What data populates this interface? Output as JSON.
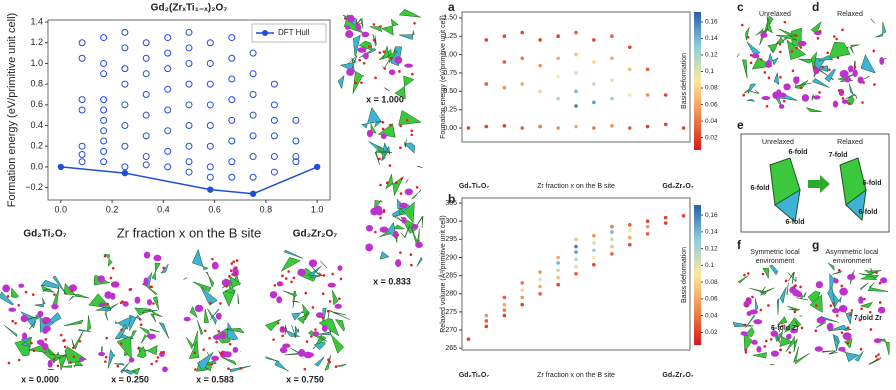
{
  "chart_data": [
    {
      "type": "scatter",
      "title": "Gd₂(ZrₓTi₁₋ₓ)₂O₇",
      "xlabel": "Zr fraction x on the B site",
      "ylabel": "Formation energy (eV/primitive unit cell)",
      "annotations": [
        "Gd₂Ti₂O₇",
        "Gd₂Zr₂O₇"
      ],
      "xlim": [
        -0.05,
        1.05
      ],
      "ylim": [
        -0.32,
        1.42
      ],
      "xticks": [
        {
          "value": 0,
          "label": "0.0"
        },
        {
          "value": 0.2,
          "label": "0.2"
        },
        {
          "value": 0.4,
          "label": "0.4"
        },
        {
          "value": 0.6,
          "label": "0.6"
        },
        {
          "value": 0.8,
          "label": "0.8"
        },
        {
          "value": 1,
          "label": "1.0"
        }
      ],
      "yticks": [
        {
          "value": -0.2,
          "label": "−0.2"
        },
        {
          "value": 0,
          "label": "0.0"
        },
        {
          "value": 0.2,
          "label": "0.2"
        },
        {
          "value": 0.4,
          "label": "0.4"
        },
        {
          "value": 0.6,
          "label": "0.6"
        },
        {
          "value": 0.8,
          "label": "0.8"
        },
        {
          "value": 1,
          "label": "1.0"
        },
        {
          "value": 1.2,
          "label": "1.2"
        },
        {
          "value": 1.4,
          "label": "1.4"
        }
      ],
      "legend": "upper right",
      "series": [
        {
          "color": "#1f4fd6",
          "mode": "open",
          "x": [
            0.083,
            0.083,
            0.083,
            0.083,
            0.083,
            0.083,
            0.083,
            0.167,
            0.167,
            0.167,
            0.167,
            0.167,
            0.167,
            0.167,
            0.167,
            0.167,
            0.167,
            0.25,
            0.25,
            0.25,
            0.25,
            0.25,
            0.25,
            0.25,
            0.25,
            0.333,
            0.333,
            0.333,
            0.333,
            0.333,
            0.333,
            0.333,
            0.333,
            0.417,
            0.417,
            0.417,
            0.417,
            0.417,
            0.417,
            0.417,
            0.417,
            0.5,
            0.5,
            0.5,
            0.5,
            0.5,
            0.5,
            0.5,
            0.5,
            0.5,
            0.583,
            0.583,
            0.583,
            0.583,
            0.583,
            0.583,
            0.583,
            0.583,
            0.667,
            0.667,
            0.667,
            0.667,
            0.667,
            0.667,
            0.667,
            0.667,
            0.75,
            0.75,
            0.75,
            0.75,
            0.75,
            0.75,
            0.75,
            0.833,
            0.833,
            0.833,
            0.833,
            0.833,
            0.833,
            0.917,
            0.917,
            0.917,
            0.917
          ],
          "y": [
            1.2,
            1.05,
            0.65,
            0.55,
            0.2,
            0.12,
            0.05,
            1.25,
            1.0,
            0.9,
            0.65,
            0.55,
            0.45,
            0.35,
            0.25,
            0.15,
            0.05,
            1.3,
            1.15,
            0.95,
            0.8,
            0.6,
            0.4,
            0.2,
            0.0,
            1.2,
            1.05,
            0.9,
            0.7,
            0.5,
            0.3,
            0.1,
            0.02,
            1.25,
            1.1,
            0.95,
            0.75,
            0.55,
            0.35,
            0.15,
            0.0,
            1.3,
            1.15,
            1.0,
            0.8,
            0.6,
            0.4,
            0.2,
            0.05,
            -0.05,
            1.2,
            1.0,
            0.8,
            0.6,
            0.4,
            0.2,
            0.0,
            -0.1,
            1.25,
            1.05,
            0.85,
            0.65,
            0.45,
            0.25,
            0.05,
            -0.1,
            1.1,
            0.9,
            0.7,
            0.5,
            0.3,
            0.1,
            -0.1,
            0.8,
            0.6,
            0.45,
            0.3,
            0.1,
            -0.05,
            0.45,
            0.25,
            0.1,
            0.05
          ]
        },
        {
          "name": "DFT Hull",
          "color": "#1f4fd6",
          "mode": "line",
          "x": [
            0,
            0.25,
            0.583,
            0.75,
            1.0
          ],
          "y": [
            0,
            -0.06,
            -0.22,
            -0.26,
            0
          ]
        }
      ]
    },
    {
      "type": "scatter",
      "ylabel": "Formation energy (eV/primitive unit cell)",
      "xlabel": "Zr fraction x on the B site",
      "annotations": [
        "Gd₂Ti₂O₇",
        "Gd₂Zr₂O₇"
      ],
      "xlim": [
        -0.03,
        1.03
      ],
      "ylim": [
        -0.19,
        1.58
      ],
      "yticks": [
        {
          "value": 0,
          "label": "0.00"
        },
        {
          "value": 0.25,
          "label": "0.25"
        },
        {
          "value": 0.5,
          "label": "0.50"
        },
        {
          "value": 0.75,
          "label": "0.75"
        },
        {
          "value": 1,
          "label": "1.00"
        },
        {
          "value": 1.25,
          "label": "1.25"
        },
        {
          "value": 1.5,
          "label": "1.50"
        }
      ],
      "colorbar": {
        "label": "Basis deformation",
        "lim": [
          0.005,
          0.172
        ],
        "ticks": [
          0.02,
          0.04,
          0.06,
          0.08,
          0.1,
          0.12,
          0.14,
          0.16
        ],
        "colors": [
          "#d7191c",
          "#f08a4b",
          "#fde79c",
          "#8fcfdc",
          "#2a5ea8"
        ]
      },
      "series": [
        {
          "x": [
            0,
            1,
            0.083,
            0.083,
            0.083,
            0.167,
            0.167,
            0.167,
            0.167,
            0.25,
            0.25,
            0.25,
            0.25,
            0.333,
            0.333,
            0.333,
            0.333,
            0.417,
            0.417,
            0.417,
            0.417,
            0.417,
            0.5,
            0.5,
            0.5,
            0.5,
            0.5,
            0.5,
            0.583,
            0.583,
            0.583,
            0.583,
            0.583,
            0.667,
            0.667,
            0.667,
            0.667,
            0.667,
            0.75,
            0.75,
            0.75,
            0.75,
            0.833,
            0.833,
            0.833,
            0.917,
            0.917
          ],
          "y": [
            0,
            0,
            1.2,
            0.6,
            0.02,
            1.25,
            0.9,
            0.55,
            0.03,
            1.3,
            0.95,
            0.6,
            0.0,
            1.2,
            0.85,
            0.5,
            0.02,
            1.25,
            0.95,
            0.7,
            0.4,
            0.0,
            1.3,
            1.0,
            0.75,
            0.5,
            0.3,
            0.02,
            1.2,
            0.9,
            0.6,
            0.35,
            0.0,
            1.25,
            0.95,
            0.65,
            0.4,
            0.03,
            1.1,
            0.8,
            0.45,
            0.0,
            0.8,
            0.45,
            0.02,
            0.45,
            0.05
          ],
          "c": [
            0.02,
            0.02,
            0.02,
            0.03,
            0.02,
            0.02,
            0.03,
            0.05,
            0.02,
            0.02,
            0.04,
            0.06,
            0.03,
            0.02,
            0.05,
            0.08,
            0.04,
            0.02,
            0.06,
            0.09,
            0.12,
            0.05,
            0.03,
            0.07,
            0.1,
            0.14,
            0.16,
            0.06,
            0.02,
            0.08,
            0.11,
            0.15,
            0.04,
            0.03,
            0.06,
            0.1,
            0.13,
            0.05,
            0.02,
            0.07,
            0.09,
            0.03,
            0.03,
            0.05,
            0.02,
            0.02,
            0.02
          ]
        }
      ]
    },
    {
      "type": "scatter",
      "ylabel": "Relaxed volume (Å³/primitive unit cell)",
      "xlabel": "Zr fraction x on the B site",
      "annotations": [
        "Gd₂Ti₂O₇",
        "Gd₂Zr₂O₇"
      ],
      "xlim": [
        -0.03,
        1.03
      ],
      "ylim": [
        264.5,
        306.4
      ],
      "yticks": [
        265,
        270,
        275,
        280,
        285,
        290,
        295,
        300,
        305
      ],
      "colorbar": {
        "label": "Basis deformation",
        "lim": [
          0.005,
          0.172
        ],
        "ticks": [
          0.02,
          0.04,
          0.06,
          0.08,
          0.1,
          0.12,
          0.14,
          0.16
        ],
        "colors": [
          "#d7191c",
          "#f08a4b",
          "#fde79c",
          "#8fcfdc",
          "#2a5ea8"
        ]
      },
      "series": [
        {
          "x": [
            0,
            1,
            0.083,
            0.083,
            0.083,
            0.167,
            0.167,
            0.167,
            0.167,
            0.25,
            0.25,
            0.25,
            0.25,
            0.333,
            0.333,
            0.333,
            0.333,
            0.417,
            0.417,
            0.417,
            0.417,
            0.417,
            0.5,
            0.5,
            0.5,
            0.5,
            0.5,
            0.5,
            0.583,
            0.583,
            0.583,
            0.583,
            0.583,
            0.667,
            0.667,
            0.667,
            0.667,
            0.667,
            0.75,
            0.75,
            0.75,
            0.75,
            0.833,
            0.833,
            0.833,
            0.917,
            0.917
          ],
          "y": [
            267.5,
            301.5,
            271,
            272.5,
            274,
            274,
            275.5,
            277,
            279,
            277,
            279,
            281,
            283,
            280,
            282,
            284,
            286,
            282.5,
            284.5,
            286.5,
            288.5,
            290,
            285.5,
            287.5,
            289.5,
            291.5,
            293,
            295,
            288,
            290,
            292,
            294,
            296,
            291,
            293,
            295,
            297,
            298.5,
            293.5,
            295.5,
            297.5,
            299,
            296.5,
            298.5,
            300,
            299.5,
            301
          ],
          "c": [
            0.02,
            0.02,
            0.02,
            0.03,
            0.05,
            0.02,
            0.04,
            0.06,
            0.03,
            0.02,
            0.05,
            0.08,
            0.04,
            0.03,
            0.06,
            0.1,
            0.05,
            0.02,
            0.07,
            0.11,
            0.14,
            0.06,
            0.03,
            0.08,
            0.12,
            0.15,
            0.16,
            0.07,
            0.02,
            0.09,
            0.13,
            0.1,
            0.05,
            0.03,
            0.07,
            0.11,
            0.14,
            0.04,
            0.02,
            0.06,
            0.09,
            0.03,
            0.03,
            0.05,
            0.02,
            0.02,
            0.02
          ]
        }
      ]
    }
  ],
  "figure": {
    "panel_labels": [
      "a",
      "b",
      "c",
      "d",
      "e",
      "f",
      "g"
    ],
    "structures": [
      "x = 1.000",
      "x = 0.833",
      "x = 0.000",
      "x = 0.250",
      "x = 0.583",
      "x = 0.750"
    ],
    "panel_c": "Unrelaxed",
    "panel_d": "Relaxed",
    "panel_e": {
      "left": "Unrelaxed",
      "right": "Relaxed",
      "labels": [
        "6-fold",
        "6-fold",
        "6-fold",
        "7-fold",
        "6-fold",
        "6-fold"
      ]
    },
    "panel_f": {
      "title": [
        "Symmetric local",
        "environment"
      ],
      "label": "6-fold Zr"
    },
    "panel_g": {
      "title": [
        "Asymmetric local",
        "environment"
      ],
      "label": "7-fold Zr"
    }
  }
}
